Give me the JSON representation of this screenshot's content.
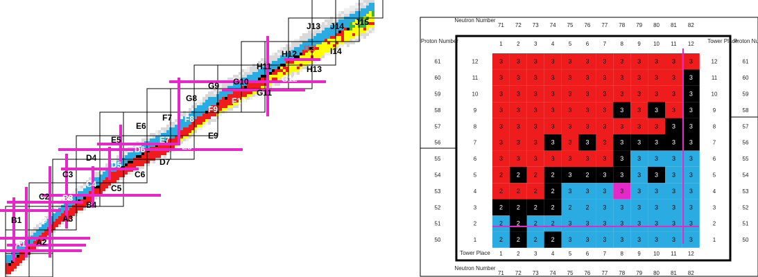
{
  "colors": {
    "red": "#ee1c1c",
    "blue": "#2aace2",
    "black": "#000000",
    "magenta": "#e628c8",
    "yellow": "#ffff00",
    "gray": "#d9d9d9"
  },
  "towers": [
    {
      "name": "A1",
      "text": "#ffffff"
    },
    {
      "name": "A2",
      "text": "#000000"
    },
    {
      "name": "B1",
      "text": "#000000"
    },
    {
      "name": "B2",
      "text": "#ffffff"
    },
    {
      "name": "A3",
      "text": "#000000"
    },
    {
      "name": "B3",
      "text": "#ffffff"
    },
    {
      "name": "B4",
      "text": "#000000"
    },
    {
      "name": "C2",
      "text": "#000000"
    },
    {
      "name": "C3",
      "text": "#000000"
    },
    {
      "name": "C4",
      "text": "#ffffff"
    },
    {
      "name": "C5",
      "text": "#000000"
    },
    {
      "name": "D4",
      "text": "#000000"
    },
    {
      "name": "D5",
      "text": "#ffffff"
    },
    {
      "name": "C6",
      "text": "#000000"
    },
    {
      "name": "D6",
      "text": "#ffffff"
    },
    {
      "name": "D7",
      "text": "#000000"
    },
    {
      "name": "E5",
      "text": "#000000"
    },
    {
      "name": "E6",
      "text": "#000000"
    },
    {
      "name": "E7",
      "text": "#ffffff"
    },
    {
      "name": "E8",
      "text": "#ffffff"
    },
    {
      "name": "E9",
      "text": "#000000"
    },
    {
      "name": "F7",
      "text": "#000000"
    },
    {
      "name": "F8",
      "text": "#ffffff"
    },
    {
      "name": "F9",
      "text": "#ffffff"
    },
    {
      "name": "F10",
      "text": "#ffffff"
    },
    {
      "name": "G8",
      "text": "#000000"
    },
    {
      "name": "G9",
      "text": "#000000"
    },
    {
      "name": "G10",
      "text": "#000000"
    },
    {
      "name": "G11",
      "text": "#000000"
    },
    {
      "name": "G12",
      "text": "#ffffff"
    },
    {
      "name": "H11",
      "text": "#000000"
    },
    {
      "name": "H12",
      "text": "#000000"
    },
    {
      "name": "H13",
      "text": "#000000"
    },
    {
      "name": "I13",
      "text": "#ff4040"
    },
    {
      "name": "I14",
      "text": "#000000"
    },
    {
      "name": "J13",
      "text": "#000000"
    },
    {
      "name": "J14",
      "text": "#000000"
    },
    {
      "name": "J15",
      "text": "#000000"
    }
  ],
  "grid": {
    "neutron_label": "Neutron Number",
    "proton_label": "Proton Number",
    "tower_place_label": "Tower Place",
    "neutron_numbers": [
      "71",
      "72",
      "73",
      "74",
      "75",
      "76",
      "77",
      "78",
      "79",
      "80",
      "81",
      "82"
    ],
    "tower_places_x": [
      "1",
      "2",
      "3",
      "4",
      "5",
      "6",
      "7",
      "8",
      "9",
      "10",
      "11",
      "12"
    ],
    "proton_numbers": [
      "61",
      "60",
      "59",
      "58",
      "57",
      "56",
      "55",
      "54",
      "53",
      "52",
      "51",
      "50"
    ],
    "tower_places_y": [
      "12",
      "11",
      "10",
      "9",
      "8",
      "7",
      "6",
      "5",
      "4",
      "3",
      "2",
      "1"
    ],
    "cells": [
      [
        "R3",
        "R3",
        "R3",
        "R3",
        "R3",
        "R3",
        "R3",
        "R3",
        "R3",
        "R3",
        "R3",
        "R3"
      ],
      [
        "R3",
        "R3",
        "R3",
        "R3",
        "R3",
        "R3",
        "R3",
        "R3",
        "R3",
        "R3",
        "R3",
        "K3"
      ],
      [
        "R3",
        "R3",
        "R3",
        "R3",
        "R3",
        "R3",
        "R3",
        "R3",
        "R3",
        "R3",
        "R3",
        "K3"
      ],
      [
        "R3",
        "R3",
        "R3",
        "R3",
        "R3",
        "R3",
        "R3",
        "K3",
        "R3",
        "K3",
        "R3",
        "K3"
      ],
      [
        "R3",
        "R3",
        "R3",
        "R3",
        "R3",
        "R3",
        "R3",
        "R3",
        "R3",
        "R3",
        "K3",
        "K3"
      ],
      [
        "R3",
        "R3",
        "R3",
        "K3",
        "R3",
        "K3",
        "R3",
        "K3",
        "K3",
        "K3",
        "K3",
        "K3"
      ],
      [
        "R3",
        "R3",
        "R3",
        "R3",
        "R3",
        "R3",
        "R3",
        "K3",
        "B3",
        "B3",
        "B3",
        "B3"
      ],
      [
        "R2",
        "K2",
        "R2",
        "K2",
        "K3",
        "K2",
        "K3",
        "K3",
        "B3",
        "K3",
        "B3",
        "B3"
      ],
      [
        "R2",
        "R2",
        "R2",
        "K2",
        "B3",
        "B3",
        "B3",
        "M3",
        "B3",
        "B3",
        "B3",
        "B3"
      ],
      [
        "K2",
        "K2",
        "K2",
        "K2",
        "B2",
        "B2",
        "B3",
        "B3",
        "B3",
        "B3",
        "B3",
        "B3"
      ],
      [
        "B2",
        "K2",
        "B2",
        "B2",
        "B3",
        "B3",
        "B3",
        "B3",
        "B3",
        "B3",
        "B3",
        "B3"
      ],
      [
        "B2",
        "K2",
        "B2",
        "K2",
        "B3",
        "B3",
        "B3",
        "B3",
        "B3",
        "B3",
        "B3",
        "B3"
      ]
    ]
  }
}
